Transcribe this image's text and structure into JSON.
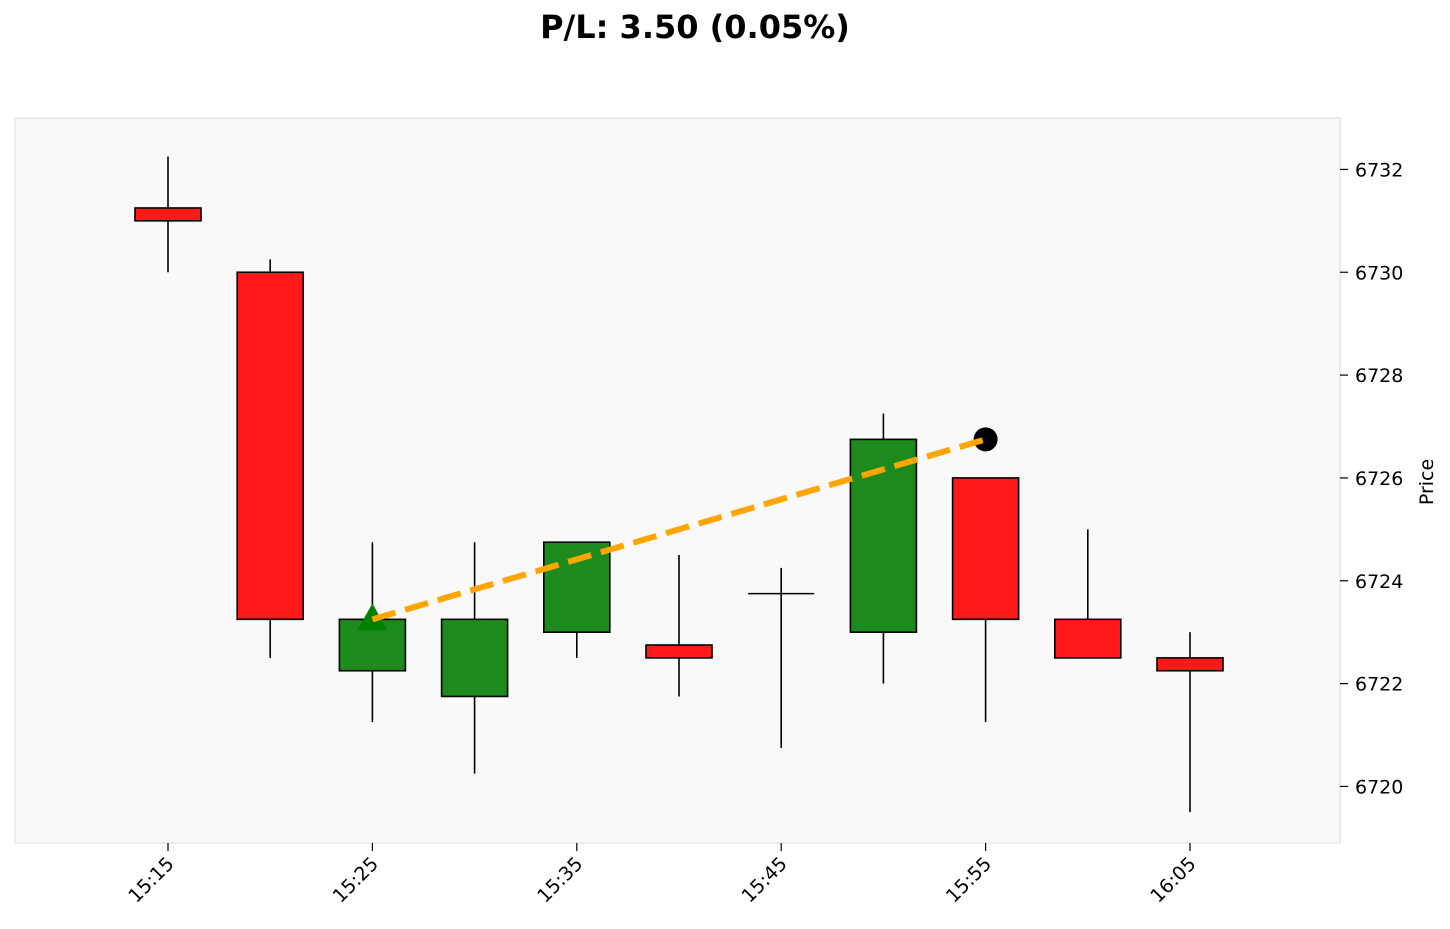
{
  "chart_data": {
    "type": "candlestick",
    "title": "P/L: 3.50 (0.05%)",
    "ylabel": "Price",
    "xlabel": "",
    "ylim": [
      6718.9,
      6733.0
    ],
    "y_ticks": [
      6720,
      6722,
      6724,
      6726,
      6728,
      6730,
      6732
    ],
    "x_tick_labels": [
      "15:15",
      "15:25",
      "15:35",
      "15:45",
      "15:55",
      "16:05"
    ],
    "x_tick_indices": [
      0,
      2,
      4,
      6,
      8,
      10
    ],
    "candles": [
      {
        "time": "15:15",
        "open": 6731.25,
        "high": 6732.25,
        "low": 6730.0,
        "close": 6731.0
      },
      {
        "time": "15:20",
        "open": 6730.0,
        "high": 6730.25,
        "low": 6722.5,
        "close": 6723.25
      },
      {
        "time": "15:25",
        "open": 6722.25,
        "high": 6724.75,
        "low": 6721.25,
        "close": 6723.25
      },
      {
        "time": "15:30",
        "open": 6721.75,
        "high": 6724.75,
        "low": 6720.25,
        "close": 6723.25
      },
      {
        "time": "15:35",
        "open": 6723.0,
        "high": 6724.75,
        "low": 6722.5,
        "close": 6724.75
      },
      {
        "time": "15:40",
        "open": 6722.75,
        "high": 6724.5,
        "low": 6721.75,
        "close": 6722.5
      },
      {
        "time": "15:45",
        "open": 6723.75,
        "high": 6724.25,
        "low": 6720.75,
        "close": 6723.75
      },
      {
        "time": "15:50",
        "open": 6723.0,
        "high": 6727.25,
        "low": 6722.0,
        "close": 6726.75
      },
      {
        "time": "15:55",
        "open": 6726.0,
        "high": 6726.0,
        "low": 6721.25,
        "close": 6723.25
      },
      {
        "time": "16:00",
        "open": 6723.25,
        "high": 6725.0,
        "low": 6722.5,
        "close": 6722.5
      },
      {
        "time": "16:05",
        "open": 6722.5,
        "high": 6723.0,
        "low": 6719.5,
        "close": 6722.25
      }
    ],
    "trade": {
      "entry": {
        "time": "15:25",
        "price": 6723.25,
        "marker": "triangle-up"
      },
      "exit": {
        "time": "15:55",
        "price": 6726.75,
        "marker": "circle"
      }
    },
    "grid": false,
    "colors": {
      "up": "#1c8a1c",
      "down": "#ff1a1a",
      "edge": "#000000",
      "trade_line": "#ffa500",
      "entry_marker": "#008000",
      "exit_marker": "#000000",
      "plot_bg": "#f9f9f9",
      "plot_border": "#e8e8e8"
    }
  }
}
